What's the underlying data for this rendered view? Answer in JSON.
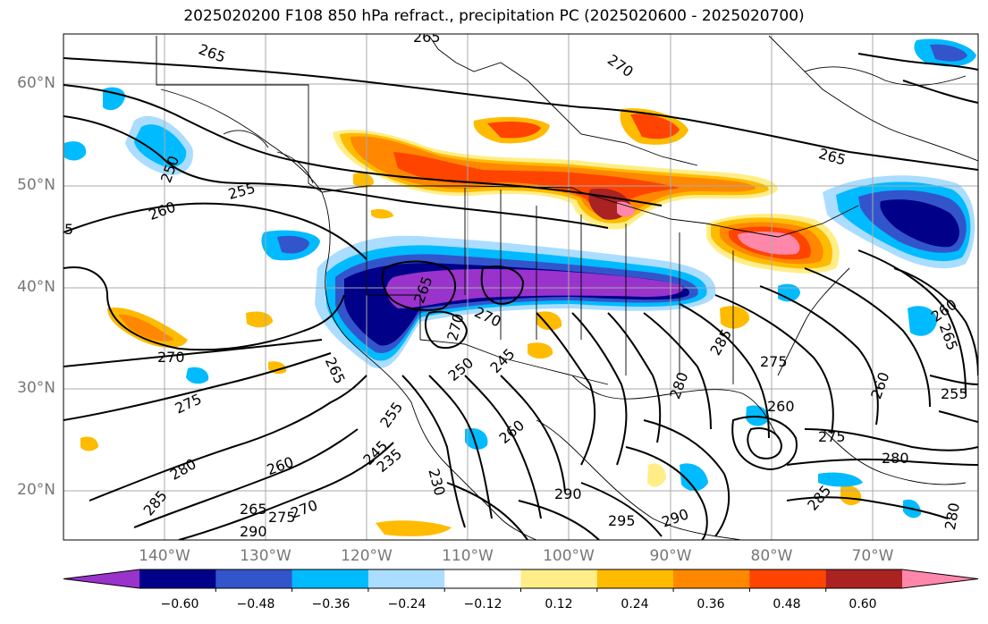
{
  "title": "2025020200 F108 850 hPa refract., precipitation PC (2025020600 - 2025020700)",
  "lat_labels": [
    "60°N",
    "50°N",
    "40°N",
    "30°N",
    "20°N"
  ],
  "lon_labels": [
    "140°W",
    "130°W",
    "120°W",
    "110°W",
    "100°W",
    "90°W",
    "80°W",
    "70°W"
  ],
  "colorbar": {
    "colors": [
      "#9933cc",
      "#000088",
      "#3355cc",
      "#00bbff",
      "#aaddff",
      "#ffffff",
      "#ffee88",
      "#ffbb00",
      "#ff8800",
      "#ff4400",
      "#aa2222",
      "#ff88aa"
    ],
    "ticks": [
      "−0.60",
      "−0.48",
      "−0.36",
      "−0.24",
      "−0.12",
      "0.12",
      "0.24",
      "0.36",
      "0.48",
      "0.60"
    ]
  },
  "contour_labels": [
    {
      "text": "265"
    },
    {
      "text": "265"
    },
    {
      "text": "270"
    },
    {
      "text": "265"
    },
    {
      "text": "250"
    },
    {
      "text": "255"
    },
    {
      "text": "260"
    },
    {
      "text": "5"
    },
    {
      "text": "265"
    },
    {
      "text": "270"
    },
    {
      "text": "270"
    },
    {
      "text": "270"
    },
    {
      "text": "275"
    },
    {
      "text": "265"
    },
    {
      "text": "255"
    },
    {
      "text": "245"
    },
    {
      "text": "235"
    },
    {
      "text": "250"
    },
    {
      "text": "260"
    },
    {
      "text": "280"
    },
    {
      "text": "285"
    },
    {
      "text": "265"
    },
    {
      "text": "275"
    },
    {
      "text": "270"
    },
    {
      "text": "290"
    },
    {
      "text": "290"
    },
    {
      "text": "295"
    },
    {
      "text": "230"
    },
    {
      "text": "260"
    },
    {
      "text": "280"
    },
    {
      "text": "285"
    },
    {
      "text": "275"
    },
    {
      "text": "260"
    },
    {
      "text": "260"
    },
    {
      "text": "255"
    },
    {
      "text": "265"
    },
    {
      "text": "275"
    },
    {
      "text": "280"
    },
    {
      "text": "285"
    },
    {
      "text": "280"
    },
    {
      "text": "260"
    },
    {
      "text": "290"
    },
    {
      "text": "245"
    }
  ]
}
